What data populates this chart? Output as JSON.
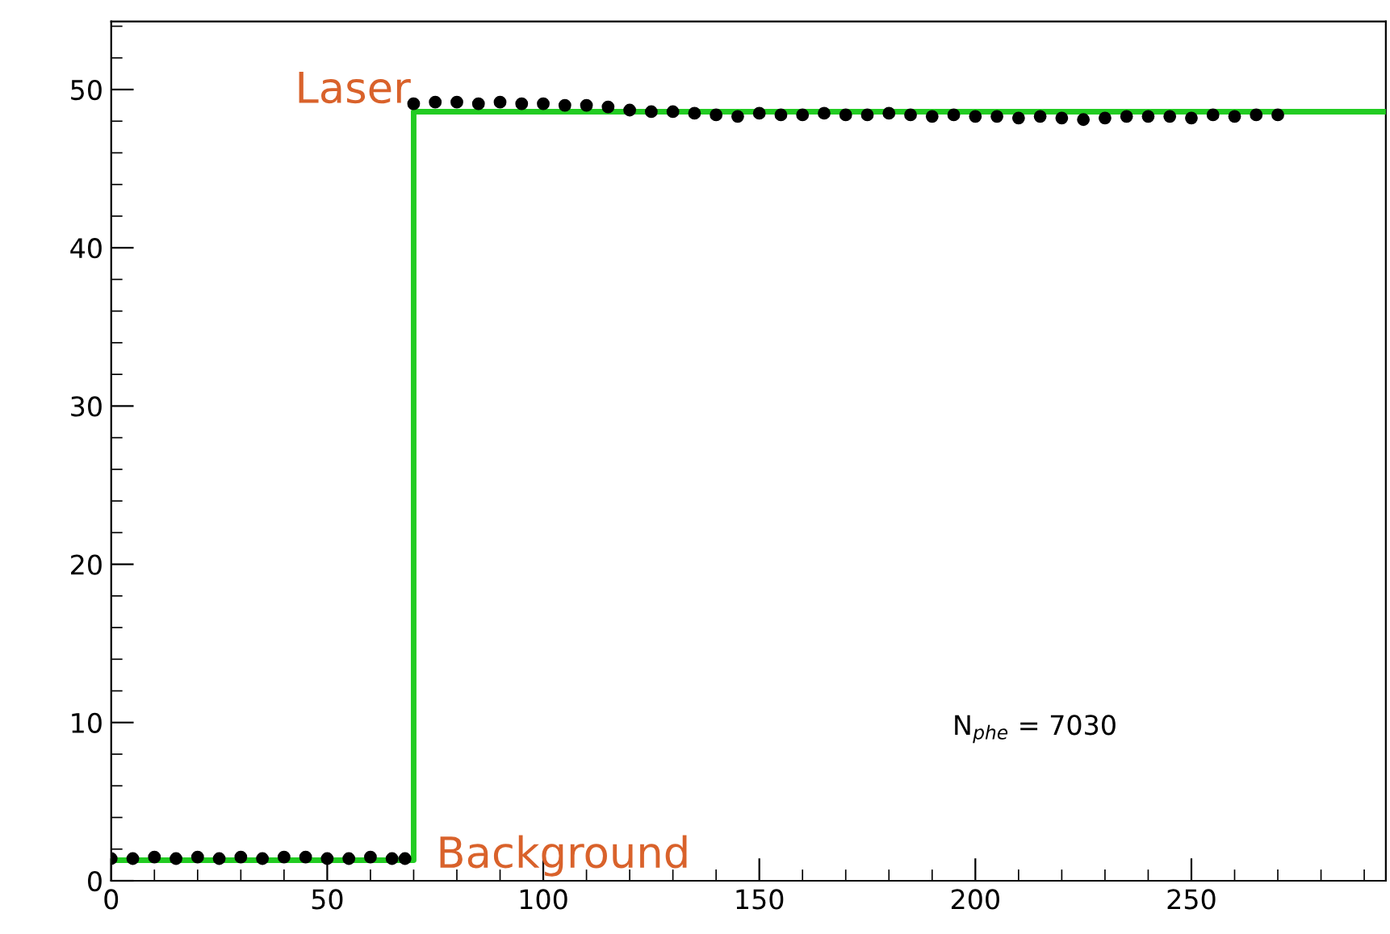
{
  "chart_data": {
    "type": "scatter",
    "xlim": [
      0,
      295
    ],
    "ylim": [
      0,
      54.3
    ],
    "xticks": [
      0,
      50,
      100,
      150,
      200,
      250
    ],
    "yticks": [
      0,
      10,
      20,
      30,
      40,
      50
    ],
    "grid": false,
    "legend": false,
    "series": [
      {
        "marker": "circle",
        "color": "#000000",
        "x": [
          0,
          5,
          10,
          15,
          20,
          25,
          30,
          35,
          40,
          45,
          50,
          55,
          60,
          65,
          68,
          70,
          75,
          80,
          85,
          90,
          95,
          100,
          105,
          110,
          115,
          120,
          125,
          130,
          135,
          140,
          145,
          150,
          155,
          160,
          165,
          170,
          175,
          180,
          185,
          190,
          195,
          200,
          205,
          210,
          215,
          220,
          225,
          230,
          235,
          240,
          245,
          250,
          255,
          260,
          265,
          270
        ],
        "values": [
          1.4,
          1.4,
          1.5,
          1.4,
          1.5,
          1.4,
          1.5,
          1.4,
          1.5,
          1.5,
          1.4,
          1.4,
          1.5,
          1.4,
          1.4,
          49.1,
          49.2,
          49.2,
          49.1,
          49.2,
          49.1,
          49.1,
          49.0,
          49.0,
          48.9,
          48.7,
          48.6,
          48.6,
          48.5,
          48.4,
          48.3,
          48.5,
          48.4,
          48.4,
          48.5,
          48.4,
          48.4,
          48.5,
          48.4,
          48.3,
          48.4,
          48.3,
          48.3,
          48.2,
          48.3,
          48.2,
          48.1,
          48.2,
          48.3,
          48.3,
          48.3,
          48.2,
          48.4,
          48.3,
          48.4,
          48.4
        ]
      },
      {
        "type": "step",
        "color": "#22cc22",
        "x": [
          0,
          70,
          295
        ],
        "values": [
          1.3,
          48.6,
          48.6
        ]
      }
    ],
    "annotations": [
      "Laser",
      "Background",
      "N$_{phe}$ = 7030"
    ]
  }
}
